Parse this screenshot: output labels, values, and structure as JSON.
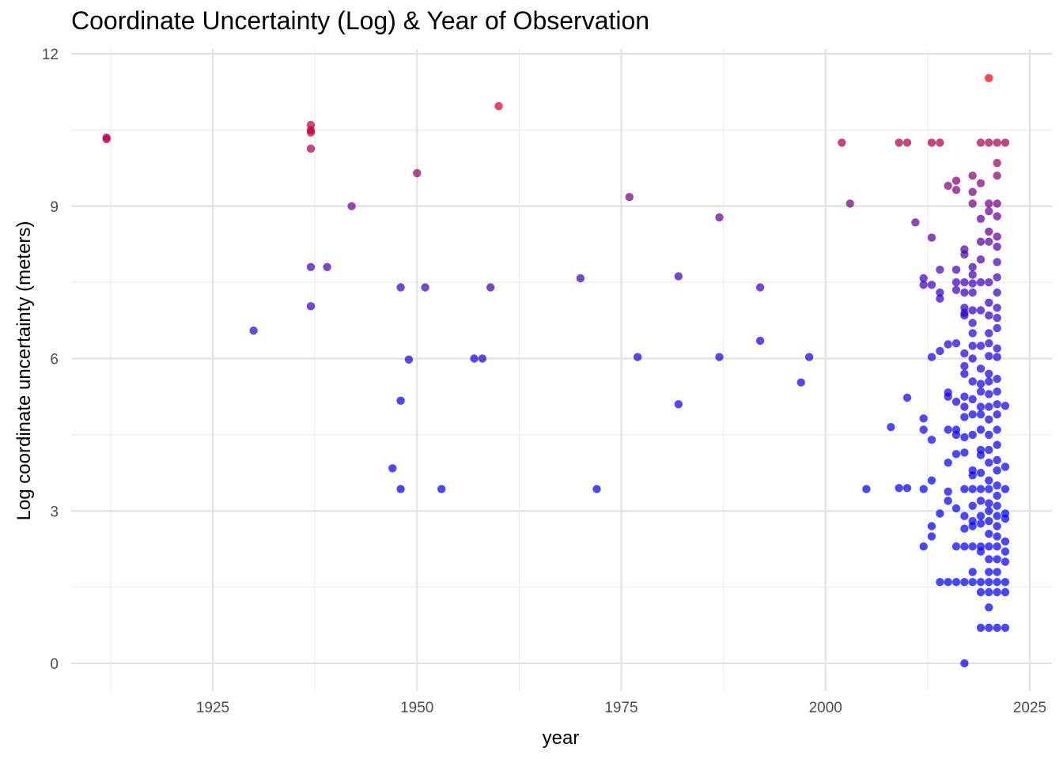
{
  "chart_data": {
    "type": "scatter",
    "title": "Coordinate Uncertainty (Log) & Year of Observation",
    "xlabel": "year",
    "ylabel": "Log coordinate uncertainty (meters)",
    "xlim": [
      1910,
      2026
    ],
    "ylim": [
      -0.5,
      12.05
    ],
    "x_ticks": [
      1925,
      1950,
      1975,
      2000,
      2025
    ],
    "y_ticks": [
      0,
      3,
      6,
      9,
      12
    ],
    "grid": true,
    "color_scale": {
      "low": "#0000ff",
      "high": "#ff0000",
      "domain": [
        0,
        11.5
      ]
    },
    "points": [
      {
        "x": 1912,
        "y": 10.35
      },
      {
        "x": 1912,
        "y": 10.32
      },
      {
        "x": 1937,
        "y": 10.6
      },
      {
        "x": 1937,
        "y": 10.5
      },
      {
        "x": 1937,
        "y": 10.45
      },
      {
        "x": 1937,
        "y": 10.13
      },
      {
        "x": 1937,
        "y": 7.8
      },
      {
        "x": 1937,
        "y": 7.03
      },
      {
        "x": 1939,
        "y": 7.8
      },
      {
        "x": 1942,
        "y": 9.0
      },
      {
        "x": 1930,
        "y": 6.55
      },
      {
        "x": 1947,
        "y": 3.84
      },
      {
        "x": 1948,
        "y": 3.43
      },
      {
        "x": 1948,
        "y": 7.4
      },
      {
        "x": 1948,
        "y": 5.17
      },
      {
        "x": 1949,
        "y": 5.98
      },
      {
        "x": 1950,
        "y": 9.65
      },
      {
        "x": 1951,
        "y": 7.4
      },
      {
        "x": 1953,
        "y": 3.43
      },
      {
        "x": 1957,
        "y": 6.0
      },
      {
        "x": 1958,
        "y": 6.0
      },
      {
        "x": 1959,
        "y": 7.4
      },
      {
        "x": 1960,
        "y": 10.97
      },
      {
        "x": 1970,
        "y": 7.58
      },
      {
        "x": 1972,
        "y": 3.43
      },
      {
        "x": 1976,
        "y": 9.18
      },
      {
        "x": 1977,
        "y": 6.03
      },
      {
        "x": 1982,
        "y": 7.62
      },
      {
        "x": 1982,
        "y": 5.1
      },
      {
        "x": 1987,
        "y": 8.78
      },
      {
        "x": 1987,
        "y": 6.03
      },
      {
        "x": 1992,
        "y": 7.4
      },
      {
        "x": 1992,
        "y": 6.35
      },
      {
        "x": 1997,
        "y": 5.53
      },
      {
        "x": 1998,
        "y": 6.03
      },
      {
        "x": 2002,
        "y": 10.25
      },
      {
        "x": 2003,
        "y": 9.05
      },
      {
        "x": 2005,
        "y": 3.43
      },
      {
        "x": 2008,
        "y": 4.65
      },
      {
        "x": 2009,
        "y": 10.25
      },
      {
        "x": 2009,
        "y": 3.45
      },
      {
        "x": 2010,
        "y": 10.25
      },
      {
        "x": 2010,
        "y": 5.23
      },
      {
        "x": 2010,
        "y": 3.45
      },
      {
        "x": 2011,
        "y": 8.68
      },
      {
        "x": 2012,
        "y": 7.58
      },
      {
        "x": 2012,
        "y": 7.45
      },
      {
        "x": 2012,
        "y": 4.82
      },
      {
        "x": 2012,
        "y": 4.6
      },
      {
        "x": 2012,
        "y": 3.43
      },
      {
        "x": 2012,
        "y": 2.3
      },
      {
        "x": 2013,
        "y": 10.25
      },
      {
        "x": 2013,
        "y": 8.38
      },
      {
        "x": 2013,
        "y": 7.45
      },
      {
        "x": 2013,
        "y": 6.03
      },
      {
        "x": 2013,
        "y": 4.4
      },
      {
        "x": 2013,
        "y": 3.6
      },
      {
        "x": 2013,
        "y": 2.7
      },
      {
        "x": 2013,
        "y": 2.5
      },
      {
        "x": 2014,
        "y": 10.25
      },
      {
        "x": 2014,
        "y": 7.75
      },
      {
        "x": 2014,
        "y": 7.3
      },
      {
        "x": 2014,
        "y": 7.18
      },
      {
        "x": 2014,
        "y": 6.15
      },
      {
        "x": 2014,
        "y": 2.95
      },
      {
        "x": 2014,
        "y": 1.6
      },
      {
        "x": 2015,
        "y": 9.4
      },
      {
        "x": 2015,
        "y": 6.28
      },
      {
        "x": 2015,
        "y": 5.33
      },
      {
        "x": 2015,
        "y": 5.25
      },
      {
        "x": 2015,
        "y": 4.6
      },
      {
        "x": 2015,
        "y": 3.95
      },
      {
        "x": 2015,
        "y": 3.38
      },
      {
        "x": 2015,
        "y": 3.2
      },
      {
        "x": 2015,
        "y": 1.6
      },
      {
        "x": 2016,
        "y": 9.5
      },
      {
        "x": 2016,
        "y": 9.32
      },
      {
        "x": 2016,
        "y": 7.75
      },
      {
        "x": 2016,
        "y": 7.5
      },
      {
        "x": 2016,
        "y": 7.35
      },
      {
        "x": 2016,
        "y": 6.3
      },
      {
        "x": 2016,
        "y": 5.15
      },
      {
        "x": 2016,
        "y": 4.6
      },
      {
        "x": 2016,
        "y": 4.5
      },
      {
        "x": 2016,
        "y": 4.12
      },
      {
        "x": 2016,
        "y": 3.05
      },
      {
        "x": 2016,
        "y": 2.3
      },
      {
        "x": 2016,
        "y": 1.6
      },
      {
        "x": 2017,
        "y": 8.15
      },
      {
        "x": 2017,
        "y": 8.05
      },
      {
        "x": 2017,
        "y": 7.5
      },
      {
        "x": 2017,
        "y": 7.3
      },
      {
        "x": 2017,
        "y": 7.0
      },
      {
        "x": 2017,
        "y": 6.9
      },
      {
        "x": 2017,
        "y": 6.85
      },
      {
        "x": 2017,
        "y": 6.1
      },
      {
        "x": 2017,
        "y": 5.85
      },
      {
        "x": 2017,
        "y": 5.7
      },
      {
        "x": 2017,
        "y": 5.25
      },
      {
        "x": 2017,
        "y": 5.05
      },
      {
        "x": 2017,
        "y": 4.85
      },
      {
        "x": 2017,
        "y": 4.45
      },
      {
        "x": 2017,
        "y": 4.15
      },
      {
        "x": 2017,
        "y": 3.43
      },
      {
        "x": 2017,
        "y": 2.9
      },
      {
        "x": 2017,
        "y": 2.65
      },
      {
        "x": 2017,
        "y": 2.3
      },
      {
        "x": 2017,
        "y": 1.6
      },
      {
        "x": 2017,
        "y": 0.0
      },
      {
        "x": 2018,
        "y": 9.6
      },
      {
        "x": 2018,
        "y": 9.28
      },
      {
        "x": 2018,
        "y": 9.05
      },
      {
        "x": 2018,
        "y": 7.8
      },
      {
        "x": 2018,
        "y": 7.65
      },
      {
        "x": 2018,
        "y": 7.48
      },
      {
        "x": 2018,
        "y": 7.3
      },
      {
        "x": 2018,
        "y": 6.95
      },
      {
        "x": 2018,
        "y": 6.7
      },
      {
        "x": 2018,
        "y": 6.5
      },
      {
        "x": 2018,
        "y": 6.25
      },
      {
        "x": 2018,
        "y": 6.0
      },
      {
        "x": 2018,
        "y": 5.55
      },
      {
        "x": 2018,
        "y": 5.2
      },
      {
        "x": 2018,
        "y": 4.9
      },
      {
        "x": 2018,
        "y": 4.5
      },
      {
        "x": 2018,
        "y": 3.8
      },
      {
        "x": 2018,
        "y": 3.7
      },
      {
        "x": 2018,
        "y": 3.43
      },
      {
        "x": 2018,
        "y": 3.1
      },
      {
        "x": 2018,
        "y": 2.8
      },
      {
        "x": 2018,
        "y": 2.7
      },
      {
        "x": 2018,
        "y": 2.3
      },
      {
        "x": 2018,
        "y": 1.8
      },
      {
        "x": 2018,
        "y": 1.6
      },
      {
        "x": 2019,
        "y": 10.25
      },
      {
        "x": 2019,
        "y": 9.45
      },
      {
        "x": 2019,
        "y": 8.75
      },
      {
        "x": 2019,
        "y": 8.3
      },
      {
        "x": 2019,
        "y": 7.95
      },
      {
        "x": 2019,
        "y": 7.5
      },
      {
        "x": 2019,
        "y": 6.95
      },
      {
        "x": 2019,
        "y": 6.25
      },
      {
        "x": 2019,
        "y": 5.8
      },
      {
        "x": 2019,
        "y": 5.5
      },
      {
        "x": 2019,
        "y": 5.35
      },
      {
        "x": 2019,
        "y": 5.05
      },
      {
        "x": 2019,
        "y": 4.9
      },
      {
        "x": 2019,
        "y": 4.6
      },
      {
        "x": 2019,
        "y": 4.2
      },
      {
        "x": 2019,
        "y": 4.1
      },
      {
        "x": 2019,
        "y": 3.75
      },
      {
        "x": 2019,
        "y": 3.43
      },
      {
        "x": 2019,
        "y": 3.2
      },
      {
        "x": 2019,
        "y": 2.9
      },
      {
        "x": 2019,
        "y": 2.75
      },
      {
        "x": 2019,
        "y": 2.3
      },
      {
        "x": 2019,
        "y": 2.2
      },
      {
        "x": 2019,
        "y": 1.6
      },
      {
        "x": 2019,
        "y": 1.4
      },
      {
        "x": 2019,
        "y": 0.7
      },
      {
        "x": 2020,
        "y": 11.52
      },
      {
        "x": 2020,
        "y": 10.25
      },
      {
        "x": 2020,
        "y": 9.05
      },
      {
        "x": 2020,
        "y": 8.9
      },
      {
        "x": 2020,
        "y": 8.5
      },
      {
        "x": 2020,
        "y": 8.3
      },
      {
        "x": 2020,
        "y": 7.5
      },
      {
        "x": 2020,
        "y": 7.1
      },
      {
        "x": 2020,
        "y": 6.85
      },
      {
        "x": 2020,
        "y": 6.5
      },
      {
        "x": 2020,
        "y": 6.3
      },
      {
        "x": 2020,
        "y": 6.05
      },
      {
        "x": 2020,
        "y": 5.7
      },
      {
        "x": 2020,
        "y": 5.55
      },
      {
        "x": 2020,
        "y": 5.3
      },
      {
        "x": 2020,
        "y": 5.05
      },
      {
        "x": 2020,
        "y": 4.8
      },
      {
        "x": 2020,
        "y": 4.5
      },
      {
        "x": 2020,
        "y": 4.2
      },
      {
        "x": 2020,
        "y": 3.95
      },
      {
        "x": 2020,
        "y": 3.6
      },
      {
        "x": 2020,
        "y": 3.43
      },
      {
        "x": 2020,
        "y": 3.15
      },
      {
        "x": 2020,
        "y": 3.0
      },
      {
        "x": 2020,
        "y": 2.8
      },
      {
        "x": 2020,
        "y": 2.55
      },
      {
        "x": 2020,
        "y": 2.3
      },
      {
        "x": 2020,
        "y": 2.05
      },
      {
        "x": 2020,
        "y": 1.8
      },
      {
        "x": 2020,
        "y": 1.6
      },
      {
        "x": 2020,
        "y": 1.4
      },
      {
        "x": 2020,
        "y": 1.1
      },
      {
        "x": 2020,
        "y": 0.7
      },
      {
        "x": 2021,
        "y": 10.25
      },
      {
        "x": 2021,
        "y": 9.85
      },
      {
        "x": 2021,
        "y": 9.6
      },
      {
        "x": 2021,
        "y": 9.05
      },
      {
        "x": 2021,
        "y": 8.8
      },
      {
        "x": 2021,
        "y": 8.4
      },
      {
        "x": 2021,
        "y": 8.2
      },
      {
        "x": 2021,
        "y": 7.9
      },
      {
        "x": 2021,
        "y": 7.6
      },
      {
        "x": 2021,
        "y": 7.3
      },
      {
        "x": 2021,
        "y": 7.0
      },
      {
        "x": 2021,
        "y": 6.8
      },
      {
        "x": 2021,
        "y": 6.6
      },
      {
        "x": 2021,
        "y": 6.2
      },
      {
        "x": 2021,
        "y": 6.03
      },
      {
        "x": 2021,
        "y": 5.6
      },
      {
        "x": 2021,
        "y": 5.35
      },
      {
        "x": 2021,
        "y": 5.1
      },
      {
        "x": 2021,
        "y": 4.9
      },
      {
        "x": 2021,
        "y": 4.6
      },
      {
        "x": 2021,
        "y": 4.3
      },
      {
        "x": 2021,
        "y": 4.0
      },
      {
        "x": 2021,
        "y": 3.8
      },
      {
        "x": 2021,
        "y": 3.5
      },
      {
        "x": 2021,
        "y": 3.3
      },
      {
        "x": 2021,
        "y": 3.1
      },
      {
        "x": 2021,
        "y": 2.9
      },
      {
        "x": 2021,
        "y": 2.7
      },
      {
        "x": 2021,
        "y": 2.5
      },
      {
        "x": 2021,
        "y": 2.3
      },
      {
        "x": 2021,
        "y": 2.05
      },
      {
        "x": 2021,
        "y": 1.8
      },
      {
        "x": 2021,
        "y": 1.6
      },
      {
        "x": 2021,
        "y": 1.4
      },
      {
        "x": 2021,
        "y": 0.7
      },
      {
        "x": 2022,
        "y": 10.25
      },
      {
        "x": 2022,
        "y": 5.07
      },
      {
        "x": 2022,
        "y": 3.87
      },
      {
        "x": 2022,
        "y": 3.43
      },
      {
        "x": 2022,
        "y": 2.95
      },
      {
        "x": 2022,
        "y": 2.85
      },
      {
        "x": 2022,
        "y": 2.4
      },
      {
        "x": 2022,
        "y": 2.2
      },
      {
        "x": 2022,
        "y": 2.0
      },
      {
        "x": 2022,
        "y": 1.6
      },
      {
        "x": 2022,
        "y": 1.4
      },
      {
        "x": 2022,
        "y": 0.7
      }
    ]
  }
}
